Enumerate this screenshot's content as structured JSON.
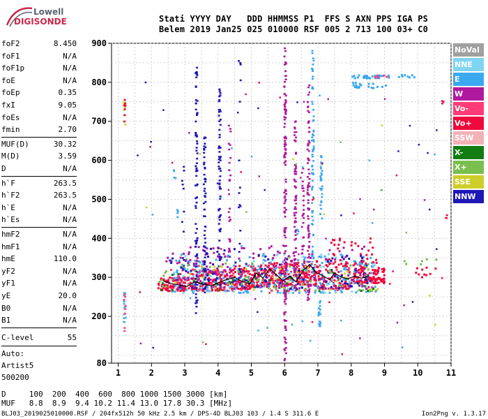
{
  "logo": {
    "line1": "Lowell",
    "line2": "DIGISONDE"
  },
  "header": {
    "row1": "Stati YYYY DAY   DDD HHMMSS P1  FFS S AXN PPS IGA PS",
    "row2": "Belem 2019 Jan25 025 010000 RSF 005 2 713 100 03+ C0"
  },
  "params_group1": [
    {
      "label": "foF2",
      "value": "8.450"
    },
    {
      "label": "foF1",
      "value": "N/A"
    },
    {
      "label": "foF1p",
      "value": "N/A"
    },
    {
      "label": "foE",
      "value": "N/A"
    },
    {
      "label": "foEp",
      "value": "0.35"
    },
    {
      "label": "fxI",
      "value": "9.05"
    },
    {
      "label": "foEs",
      "value": "N/A"
    },
    {
      "label": "fmin",
      "value": "2.70"
    }
  ],
  "params_group2": [
    {
      "label": "MUF(D)",
      "value": "30.32"
    },
    {
      "label": "M(D)",
      "value": "3.59"
    },
    {
      "label": "D",
      "value": "N/A"
    }
  ],
  "params_group3": [
    {
      "label": "h`F",
      "value": "263.5"
    },
    {
      "label": "h`F2",
      "value": "263.5"
    },
    {
      "label": "h`E",
      "value": "N/A"
    },
    {
      "label": "h`Es",
      "value": "N/A"
    }
  ],
  "params_group4": [
    {
      "label": "hmF2",
      "value": "N/A"
    },
    {
      "label": "hmF1",
      "value": "N/A"
    },
    {
      "label": "hmE",
      "value": "110.0"
    },
    {
      "label": "yF2",
      "value": "N/A"
    },
    {
      "label": "yF1",
      "value": "N/A"
    },
    {
      "label": "yE",
      "value": "20.0"
    },
    {
      "label": "B0",
      "value": "N/A"
    },
    {
      "label": "B1",
      "value": "N/A"
    }
  ],
  "clevel": {
    "label": "C-level",
    "value": "55"
  },
  "autoscale": [
    "Auto:",
    "Artist5",
    "500200"
  ],
  "legend": [
    {
      "name": "NoVal",
      "color": "#a0a0a0"
    },
    {
      "name": "NNE",
      "color": "#7fd4f2"
    },
    {
      "name": "E",
      "color": "#3ca8f0"
    },
    {
      "name": "W",
      "color": "#b0189e"
    },
    {
      "name": "Vo-",
      "color": "#ff3c78"
    },
    {
      "name": "Vo+",
      "color": "#ee0a3c"
    },
    {
      "name": "SSW",
      "color": "#f2b2b6"
    },
    {
      "name": "X-",
      "color": "#117c11"
    },
    {
      "name": "X+",
      "color": "#7abf4e"
    },
    {
      "name": "SSE",
      "color": "#cece2a"
    },
    {
      "name": "NNW",
      "color": "#1e18b6"
    }
  ],
  "footer": {
    "d_row": "D     100  200  400  600  800 1000 1500 3000 [km]",
    "muf_row": "MUF   8.8  8.9  9.4 10.2 11.4 13.0 17.8 30.3 [MHz]",
    "file_info": "BLJ03_2019025010000.RSF / 204fx512h 50 kHz 2.5 km / DPS-4D BLJ03 103 / 1.4 S 311.6 E",
    "version": "Ion2Png v. 1.3.17"
  },
  "chart_data": {
    "type": "scatter",
    "xlim": [
      0.8,
      11.0
    ],
    "ylim": [
      80,
      900
    ],
    "xticks": [
      1,
      2,
      3,
      4,
      5,
      6,
      7,
      8,
      9,
      10,
      11
    ],
    "yticks": [
      80,
      200,
      300,
      400,
      500,
      600,
      700,
      800,
      900
    ],
    "grid": true,
    "legend_position": "right",
    "trace": [
      [
        2.35,
        291
      ],
      [
        2.6,
        284
      ],
      [
        2.85,
        280
      ],
      [
        3.05,
        276
      ],
      [
        3.3,
        289
      ],
      [
        3.55,
        282
      ],
      [
        3.8,
        278
      ],
      [
        4.0,
        286
      ],
      [
        4.25,
        294
      ],
      [
        4.5,
        300
      ],
      [
        4.7,
        290
      ],
      [
        4.95,
        283
      ],
      [
        5.15,
        311
      ],
      [
        5.35,
        298
      ],
      [
        5.55,
        322
      ],
      [
        5.75,
        307
      ],
      [
        5.95,
        291
      ],
      [
        6.15,
        303
      ],
      [
        6.35,
        288
      ],
      [
        6.55,
        317
      ],
      [
        6.75,
        333
      ],
      [
        6.95,
        312
      ],
      [
        7.15,
        304
      ],
      [
        7.35,
        294
      ],
      [
        7.5,
        311
      ],
      [
        7.7,
        301
      ],
      [
        7.9,
        296
      ],
      [
        8.1,
        303
      ],
      [
        8.3,
        298
      ],
      [
        8.5,
        301
      ]
    ],
    "clusters": [
      {
        "series": "Vo+",
        "x": [
          2.2,
          3.2
        ],
        "y": [
          265,
          300
        ],
        "n": 100
      },
      {
        "series": "Vo+",
        "x": [
          3.2,
          4.3
        ],
        "y": [
          265,
          320
        ],
        "n": 120
      },
      {
        "series": "Vo+",
        "x": [
          4.3,
          5.0
        ],
        "y": [
          270,
          330
        ],
        "n": 80
      },
      {
        "series": "Vo+",
        "x": [
          5.0,
          6.0
        ],
        "y": [
          275,
          340
        ],
        "n": 140
      },
      {
        "series": "Vo+",
        "x": [
          6.0,
          7.0
        ],
        "y": [
          280,
          345
        ],
        "n": 120
      },
      {
        "series": "Vo+",
        "x": [
          7.0,
          8.0
        ],
        "y": [
          270,
          335
        ],
        "n": 90
      },
      {
        "series": "Vo+",
        "x": [
          8.0,
          9.0
        ],
        "y": [
          285,
          330
        ],
        "n": 120
      },
      {
        "series": "E",
        "x": [
          2.6,
          8.8
        ],
        "y": [
          260,
          360
        ],
        "n": 220
      },
      {
        "series": "NNE",
        "x": [
          2.6,
          8.8
        ],
        "y": [
          260,
          360
        ],
        "n": 90
      },
      {
        "series": "W",
        "x": [
          2.4,
          8.6
        ],
        "y": [
          270,
          380
        ],
        "n": 130
      },
      {
        "series": "NNW",
        "x": [
          2.4,
          8.6
        ],
        "y": [
          270,
          360
        ],
        "n": 100
      },
      {
        "series": "X+",
        "x": [
          2.2,
          8.8
        ],
        "y": [
          265,
          340
        ],
        "n": 60
      },
      {
        "series": "SSE",
        "x": [
          2.2,
          8.8
        ],
        "y": [
          265,
          330
        ],
        "n": 35
      },
      {
        "series": "X-",
        "x": [
          2.2,
          8.8
        ],
        "y": [
          265,
          330
        ],
        "n": 30
      },
      {
        "series": "Vo-",
        "x": [
          2.2,
          8.8
        ],
        "y": [
          265,
          330
        ],
        "n": 50
      },
      {
        "series": "W",
        "x": [
          2.6,
          4.3
        ],
        "y": [
          290,
          370
        ],
        "n": 30
      },
      {
        "series": "NNW",
        "x": [
          3.6,
          5.6
        ],
        "y": [
          290,
          380
        ],
        "n": 20
      },
      {
        "series": "Vo+",
        "x": [
          7.2,
          8.8
        ],
        "y": [
          330,
          400
        ],
        "n": 40
      },
      {
        "series": "E",
        "x": [
          8.0,
          9.1
        ],
        "y": [
          785,
          800
        ],
        "n": 20
      },
      {
        "series": "E",
        "x": [
          8.0,
          9.2
        ],
        "y": [
          810,
          818
        ],
        "n": 30
      },
      {
        "series": "E",
        "x": [
          9.4,
          9.9
        ],
        "y": [
          812,
          820
        ],
        "n": 8
      },
      {
        "series": "Vo-",
        "x": [
          8.6,
          9.2
        ],
        "y": [
          812,
          818
        ],
        "n": 5
      },
      {
        "series": "Vo+",
        "x": [
          9.9,
          10.6
        ],
        "y": [
          300,
          325
        ],
        "n": 10
      },
      {
        "series": "X+",
        "x": [
          9.6,
          10.6
        ],
        "y": [
          330,
          350
        ],
        "n": 6
      }
    ],
    "columns": [
      {
        "series": "NNW",
        "x": 3.35,
        "y": [
          205,
          840
        ],
        "n": 80
      },
      {
        "series": "NNW",
        "x": 3.6,
        "y": [
          250,
          660
        ],
        "n": 60
      },
      {
        "series": "NNW",
        "x": 4.05,
        "y": [
          330,
          790
        ],
        "n": 60
      },
      {
        "series": "W",
        "x": 4.35,
        "y": [
          300,
          700
        ],
        "n": 30
      },
      {
        "series": "W",
        "x": 6.02,
        "y": [
          85,
          890
        ],
        "n": 140
      },
      {
        "series": "W",
        "x": 6.32,
        "y": [
          260,
          700
        ],
        "n": 80
      },
      {
        "series": "W",
        "x": 6.72,
        "y": [
          240,
          800
        ],
        "n": 80
      },
      {
        "series": "E",
        "x": 6.85,
        "y": [
          300,
          890
        ],
        "n": 70
      },
      {
        "series": "E",
        "x": 7.1,
        "y": [
          450,
          620
        ],
        "n": 30
      },
      {
        "series": "E",
        "x": 7.05,
        "y": [
          170,
          240
        ],
        "n": 18
      },
      {
        "series": "W",
        "x": 6.55,
        "y": [
          360,
          600
        ],
        "n": 25
      },
      {
        "series": "NNW",
        "x": 2.95,
        "y": [
          330,
          600
        ],
        "n": 10
      },
      {
        "series": "E",
        "x": 2.8,
        "y": [
          450,
          500
        ],
        "n": 4
      },
      {
        "series": "E",
        "x": 2.7,
        "y": [
          540,
          580
        ],
        "n": 4
      },
      {
        "series": "SSE",
        "x": 1.2,
        "y": [
          690,
          760
        ],
        "n": 12
      },
      {
        "series": "Vo+",
        "x": 1.2,
        "y": [
          690,
          760
        ],
        "n": 8
      },
      {
        "series": "E",
        "x": 1.2,
        "y": [
          160,
          260
        ],
        "n": 12
      },
      {
        "series": "Vo-",
        "x": 1.2,
        "y": [
          160,
          260
        ],
        "n": 8
      },
      {
        "series": "NNW",
        "x": 4.65,
        "y": [
          320,
          870
        ],
        "n": 15
      },
      {
        "series": "E",
        "x": 6.4,
        "y": [
          400,
          440
        ],
        "n": 4
      },
      {
        "series": "Vo+",
        "x": 10.75,
        "y": [
          745,
          760
        ],
        "n": 3
      },
      {
        "series": "Vo+",
        "x": 10.85,
        "y": [
          450,
          470
        ],
        "n": 3
      }
    ],
    "scatter_noise": [
      {
        "series": "W",
        "x": [
          1.5,
          10.9
        ],
        "y": [
          100,
          800
        ],
        "n": 25
      },
      {
        "series": "NNW",
        "x": [
          1.5,
          10.9
        ],
        "y": [
          100,
          800
        ],
        "n": 20
      },
      {
        "series": "E",
        "x": [
          1.5,
          10.9
        ],
        "y": [
          100,
          800
        ],
        "n": 20
      },
      {
        "series": "Vo+",
        "x": [
          1.5,
          10.9
        ],
        "y": [
          100,
          800
        ],
        "n": 20
      },
      {
        "series": "SSE",
        "x": [
          1.5,
          10.9
        ],
        "y": [
          100,
          800
        ],
        "n": 8
      },
      {
        "series": "X+",
        "x": [
          1.5,
          10.9
        ],
        "y": [
          100,
          800
        ],
        "n": 8
      }
    ]
  }
}
